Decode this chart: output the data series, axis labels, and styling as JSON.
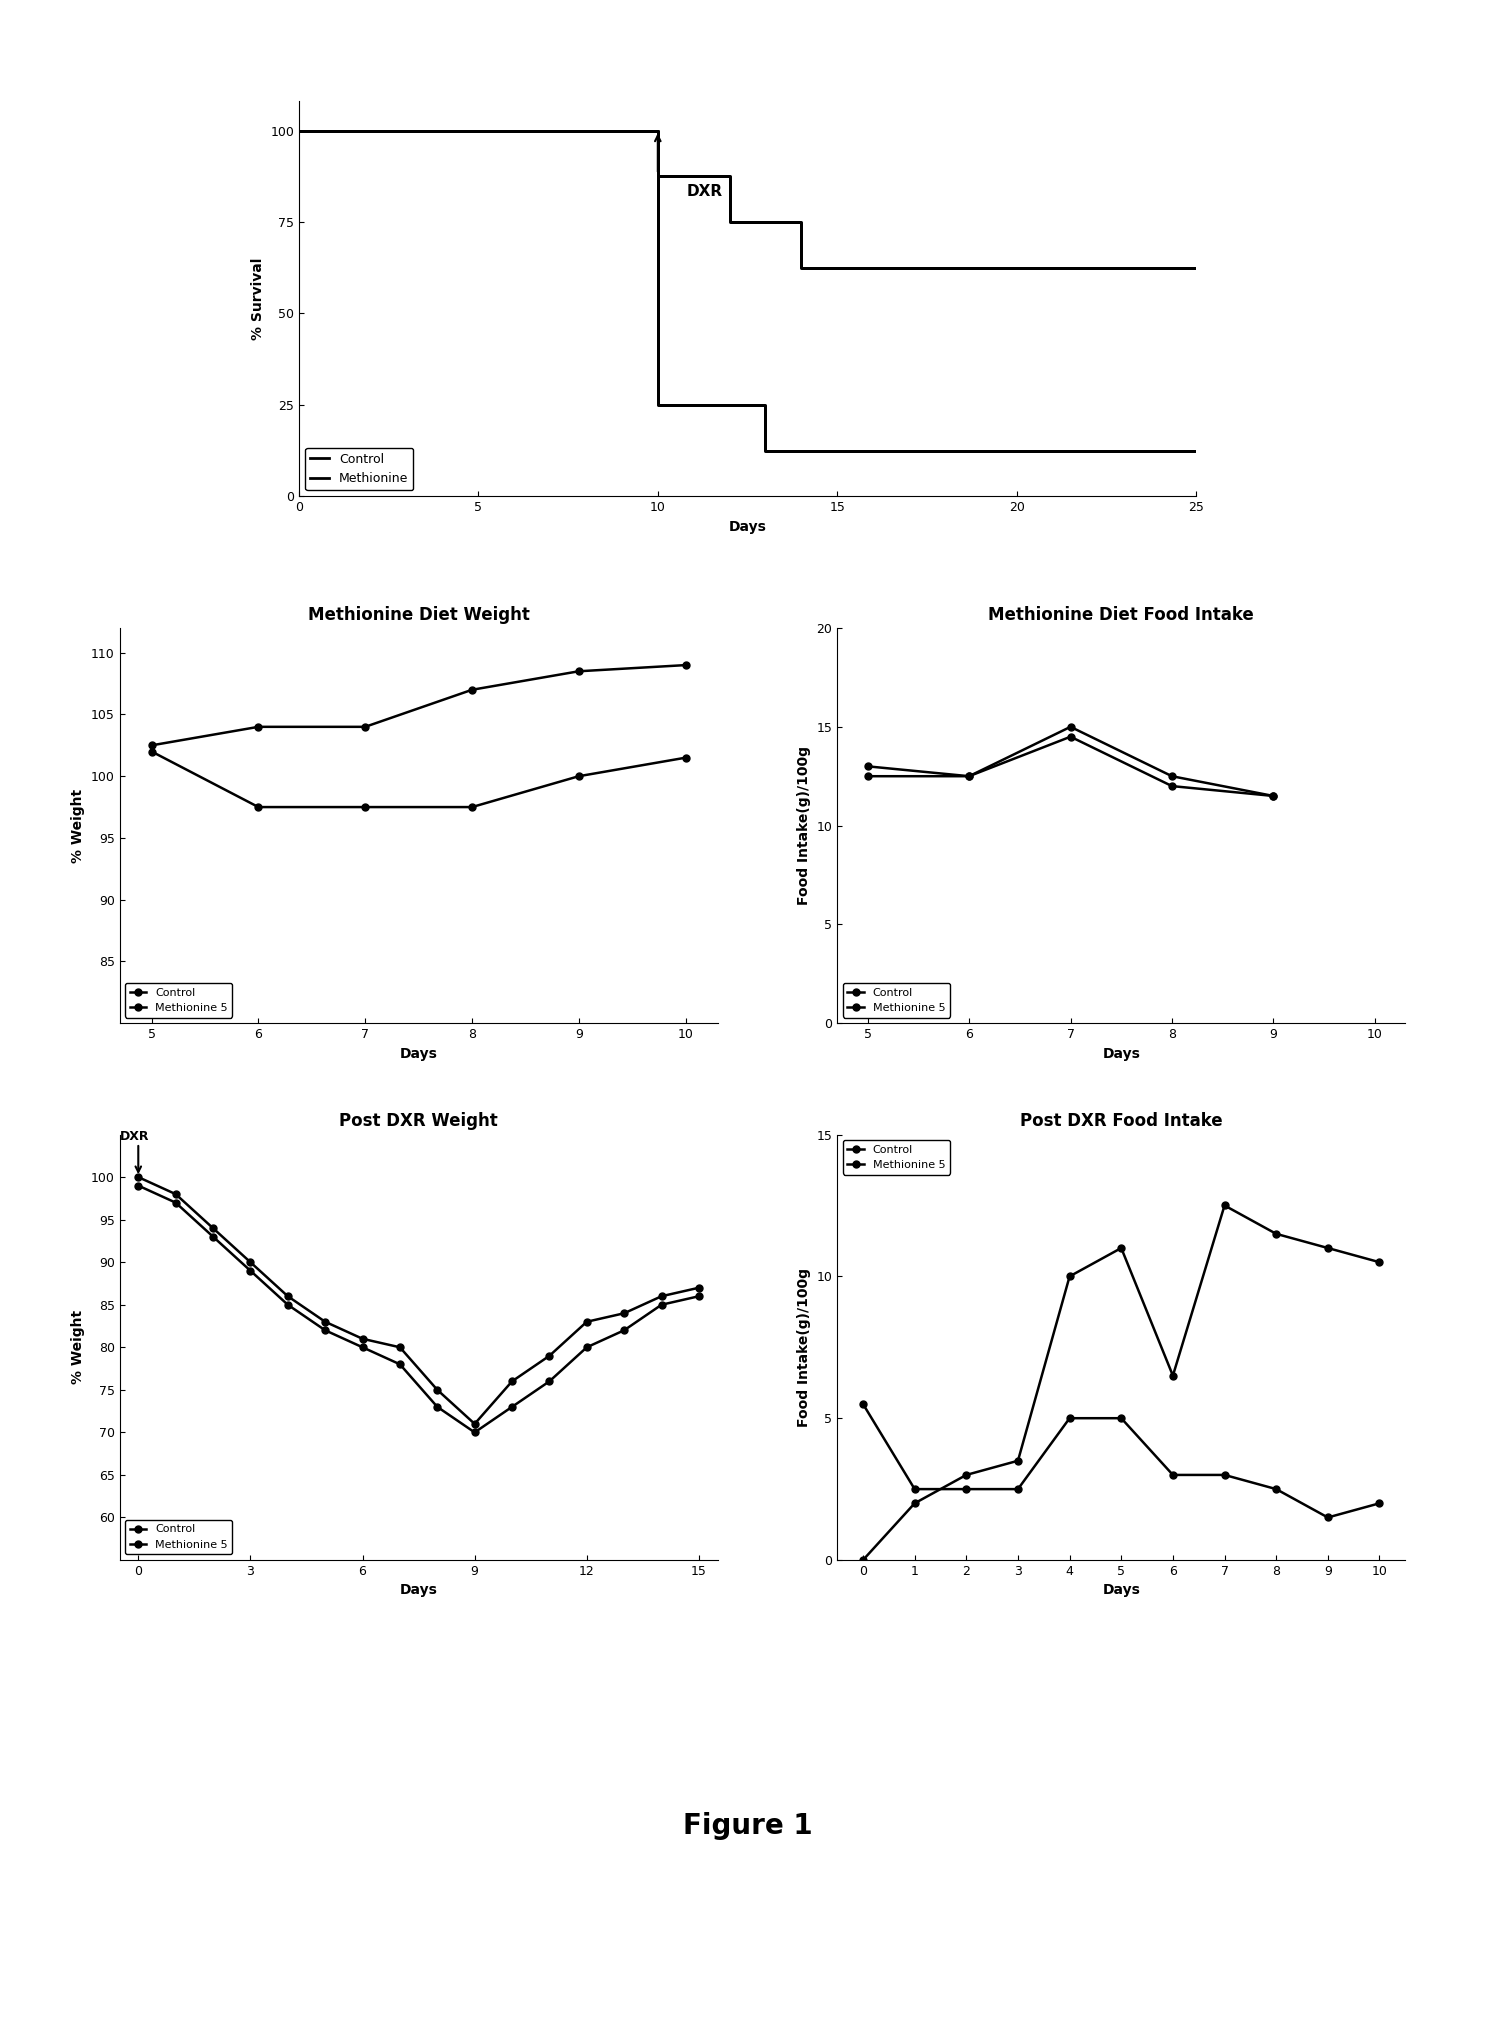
{
  "survival_control_x": [
    0,
    10,
    10,
    12,
    12,
    14,
    14,
    20,
    20,
    25
  ],
  "survival_control_y": [
    100,
    100,
    87.5,
    87.5,
    75,
    75,
    62.5,
    62.5,
    62.5,
    62.5
  ],
  "survival_meth_x": [
    0,
    10,
    10,
    13,
    13,
    19,
    19,
    25
  ],
  "survival_meth_y": [
    100,
    100,
    25,
    25,
    12.5,
    12.5,
    12.5,
    12.5
  ],
  "weight_pre_days": [
    5,
    6,
    7,
    8,
    9,
    10
  ],
  "weight_pre_control": [
    102.0,
    97.5,
    97.5,
    97.5,
    100.0,
    101.5
  ],
  "weight_pre_meth": [
    102.5,
    104.0,
    104.0,
    107.0,
    108.5,
    109.0
  ],
  "food_pre_days": [
    5,
    6,
    7,
    8,
    9
  ],
  "food_pre_control": [
    13.0,
    12.5,
    14.5,
    12.0,
    11.5
  ],
  "food_pre_meth": [
    12.5,
    12.5,
    15.0,
    12.5,
    11.5
  ],
  "weight_post_days": [
    0,
    1,
    2,
    3,
    4,
    5,
    6,
    7,
    8,
    9,
    10,
    11,
    12,
    13,
    14,
    15
  ],
  "weight_post_control": [
    99,
    97,
    93,
    89,
    85,
    82,
    80,
    78,
    73,
    70,
    73,
    76,
    80,
    82,
    85,
    86
  ],
  "weight_post_meth": [
    100,
    98,
    94,
    90,
    86,
    83,
    81,
    80,
    75,
    71,
    76,
    79,
    83,
    84,
    86,
    87
  ],
  "food_post_days": [
    0,
    1,
    2,
    3,
    4,
    5,
    6,
    7,
    8,
    9,
    10
  ],
  "food_post_control": [
    5.5,
    2.5,
    2.5,
    2.5,
    5.0,
    5.0,
    3.0,
    3.0,
    2.5,
    1.5,
    2.0
  ],
  "food_post_meth": [
    0.0,
    2.0,
    3.0,
    3.5,
    10.0,
    11.0,
    6.5,
    12.5,
    11.5,
    11.0,
    10.5
  ],
  "title_weight_pre": "Methionine Diet Weight",
  "title_food_pre": "Methionine Diet Food Intake",
  "title_weight_post": "Post DXR Weight",
  "title_food_post": "Post DXR Food Intake",
  "line_color": "#000000",
  "bg_color": "#ffffff",
  "marker": "o",
  "marker_size": 5,
  "linewidth": 1.8,
  "font_size": 10,
  "title_font_size": 12
}
